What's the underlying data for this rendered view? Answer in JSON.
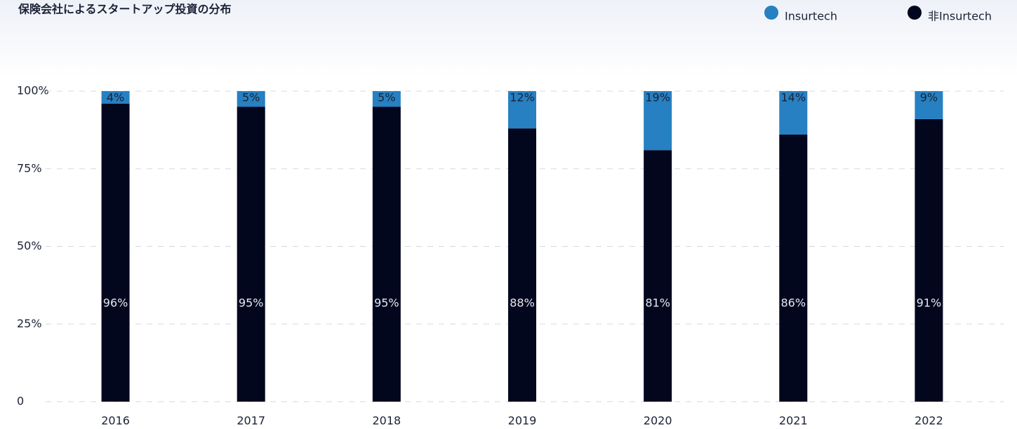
{
  "chart_data": {
    "type": "stacked_bar",
    "title": "保険会社によるスタートアップ投資の分布",
    "categories": [
      "2016",
      "2017",
      "2018",
      "2019",
      "2020",
      "2021",
      "2022"
    ],
    "series": [
      {
        "name": "Insurtech",
        "color": "#2680c2",
        "values": [
          4,
          5,
          5,
          12,
          19,
          14,
          9
        ],
        "value_labels": [
          "4%",
          "5%",
          "5%",
          "12%",
          "19%",
          "14%",
          "9%"
        ]
      },
      {
        "name": "非Insurtech",
        "color": "#03071e",
        "values": [
          96,
          95,
          95,
          88,
          81,
          86,
          91
        ],
        "value_labels": [
          "96%",
          "95%",
          "95%",
          "88%",
          "81%",
          "86%",
          "91%"
        ]
      }
    ],
    "ylim": [
      0,
      100
    ],
    "yticks": [
      0,
      {
        "value": 25,
        "label": "25%"
      },
      {
        "value": 50,
        "label": "50%"
      },
      {
        "value": 75,
        "label": "75%"
      },
      {
        "value": 100,
        "label": "100%"
      }
    ],
    "grid": true,
    "legend": "top-right"
  }
}
